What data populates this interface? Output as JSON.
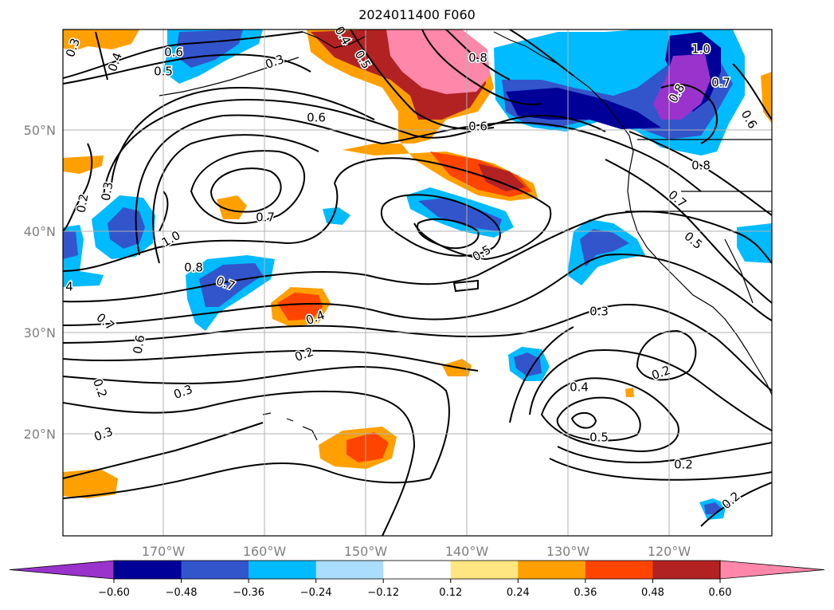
{
  "title": "2024011400 F060",
  "map": {
    "lat_labels": [
      "50°N",
      "40°N",
      "30°N",
      "20°N"
    ],
    "lon_labels": [
      "170°W",
      "160°W",
      "150°W",
      "140°W",
      "130°W",
      "120°W"
    ],
    "contour_labels": [
      "0.3",
      "0.4",
      "0.6",
      "0.5",
      "0.3",
      "0.5",
      "0.4",
      "0.8",
      "1.0",
      "0.7",
      "0.8",
      "0.6",
      "0.6",
      "0.6",
      "0.2",
      "0.3",
      "1.0",
      "0.8",
      "0.7",
      "0.7",
      "0.5",
      "0.8",
      "0.7",
      "0.5",
      "4",
      "0.7",
      "0.6",
      "0.4",
      "0.2",
      "0.3",
      "0.3",
      "0.2",
      "0.3",
      "0.4",
      "0.5",
      "0.2",
      "0.2",
      "0.2"
    ]
  },
  "colorbar": {
    "ticks": [
      "−0.60",
      "−0.48",
      "−0.36",
      "−0.24",
      "−0.12",
      "0.12",
      "0.24",
      "0.36",
      "0.48",
      "0.60"
    ],
    "colors": [
      "#9933cc",
      "#000099",
      "#3355cc",
      "#00bbff",
      "#aaddff",
      "#ffffff",
      "#ffe680",
      "#ffa000",
      "#ff4400",
      "#b22222",
      "#ff88aa"
    ]
  }
}
